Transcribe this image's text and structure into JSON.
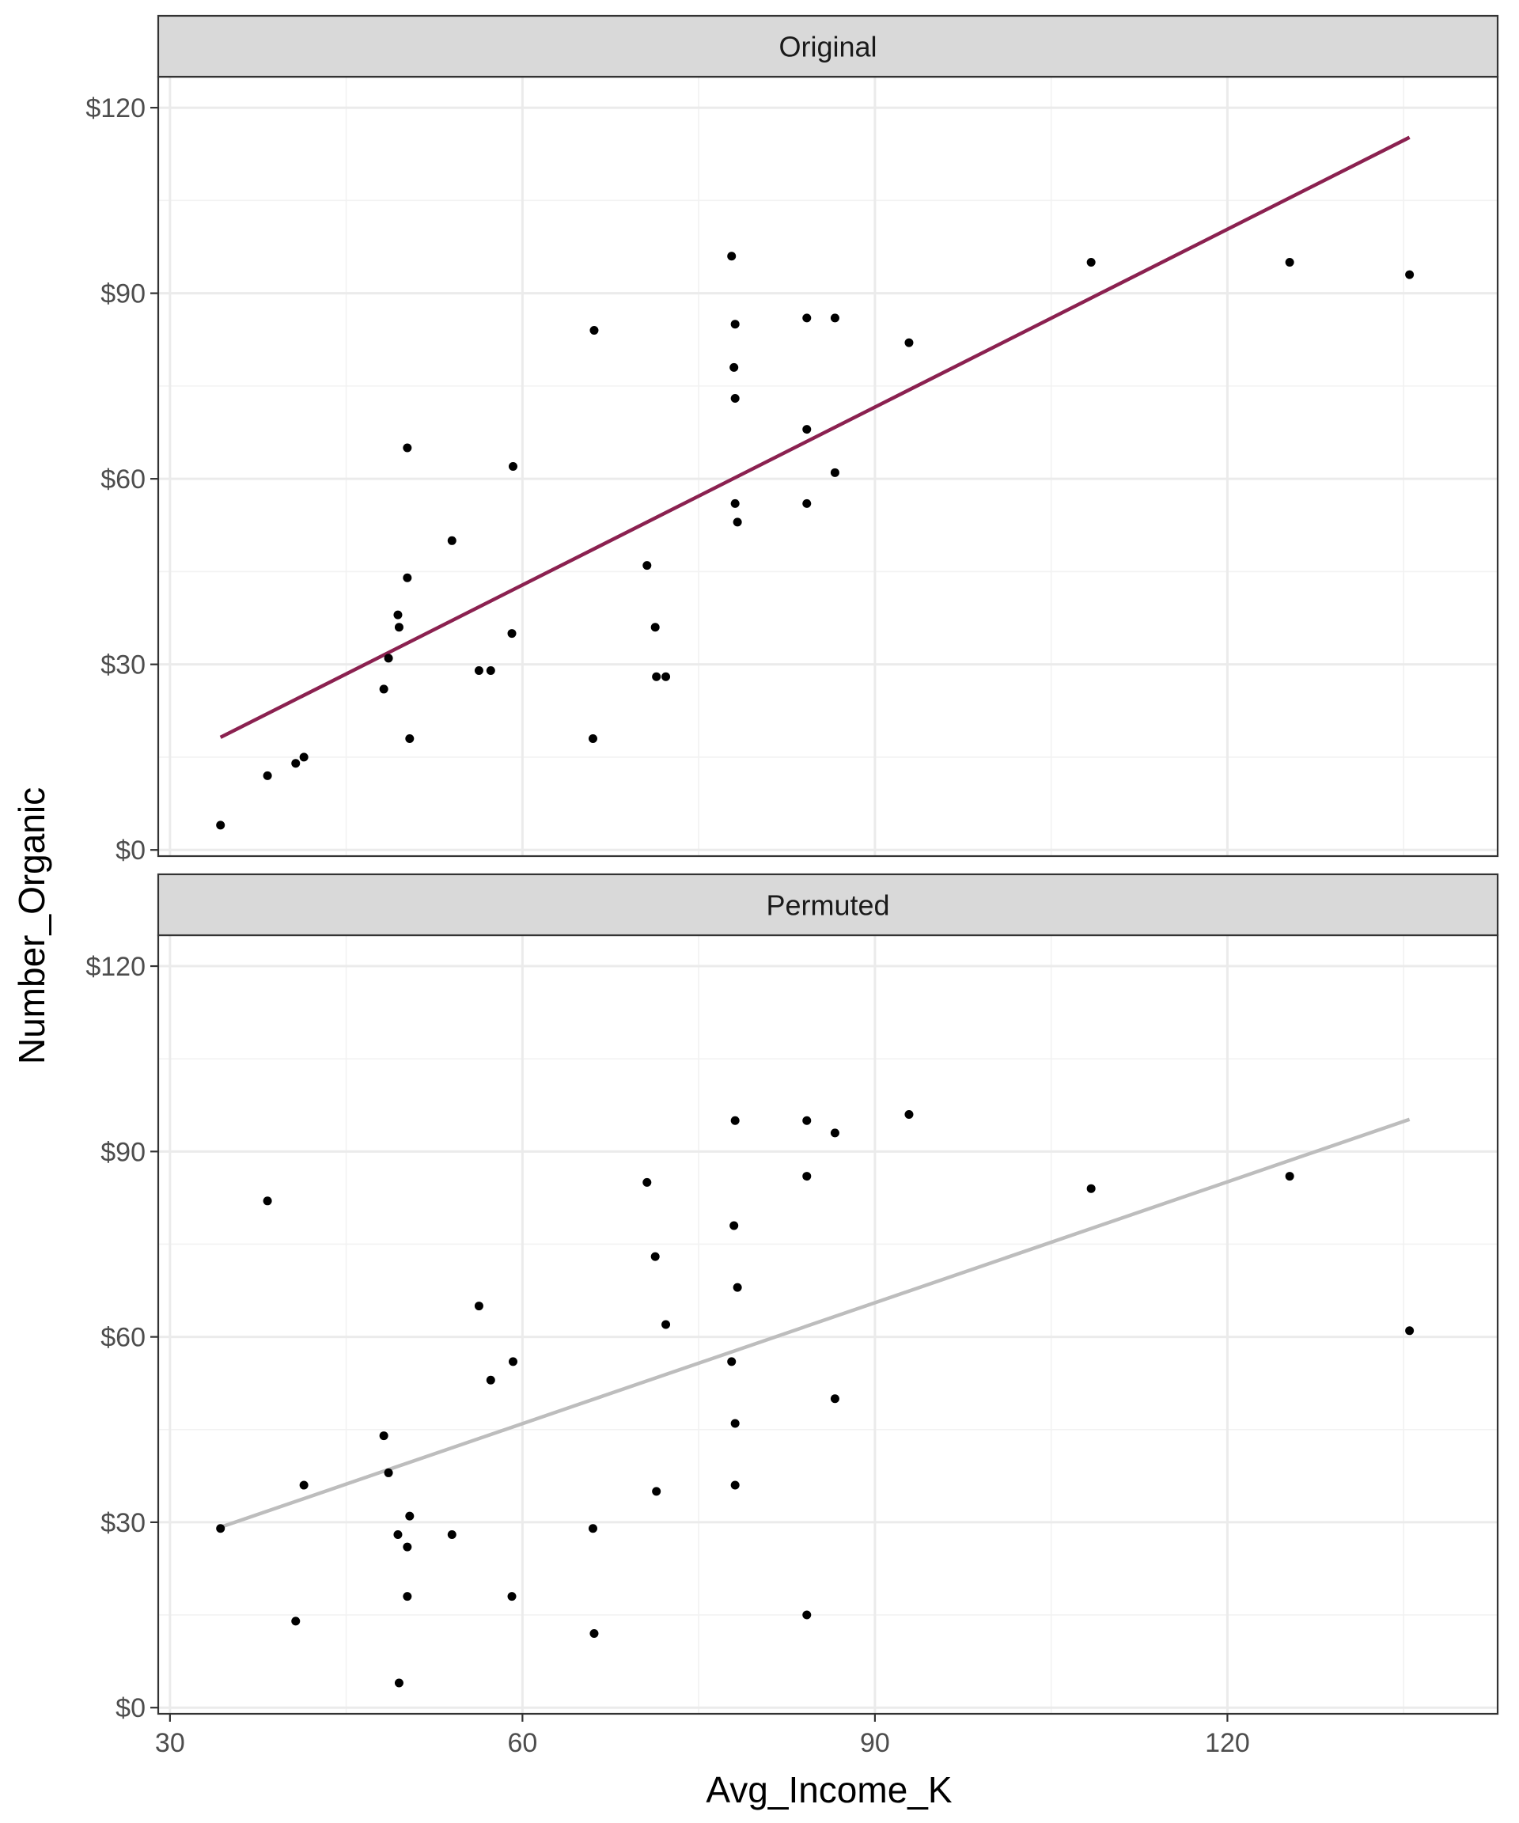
{
  "chart_data": {
    "type": "scatter",
    "xlabel": "Avg_Income_K",
    "ylabel": "Number_Organic",
    "xlim": [
      29,
      143
    ],
    "ylim": [
      -1,
      125
    ],
    "x_ticks": [
      30,
      60,
      90,
      120
    ],
    "x_tick_labels": [
      "30",
      "60",
      "90",
      "120"
    ],
    "y_ticks": [
      0,
      30,
      60,
      90,
      120
    ],
    "y_tick_labels": [
      "$0",
      "$30",
      "$60",
      "$90",
      "$120"
    ],
    "grid": true,
    "panels": [
      {
        "name": "Original",
        "line_color": "#8b2150",
        "trend_line": {
          "x": [
            34.3,
            135.5
          ],
          "y": [
            18.2,
            115.2
          ]
        },
        "points": [
          [
            34.3,
            4
          ],
          [
            38.3,
            12
          ],
          [
            40.7,
            14
          ],
          [
            41.4,
            15
          ],
          [
            48.2,
            26
          ],
          [
            48.6,
            31
          ],
          [
            49.4,
            38
          ],
          [
            49.5,
            36
          ],
          [
            50.2,
            44
          ],
          [
            50.4,
            18
          ],
          [
            50.2,
            65
          ],
          [
            54.0,
            50
          ],
          [
            56.3,
            29
          ],
          [
            57.3,
            29
          ],
          [
            59.1,
            35
          ],
          [
            59.2,
            62
          ],
          [
            66.0,
            18
          ],
          [
            66.1,
            84
          ],
          [
            70.6,
            46
          ],
          [
            71.3,
            36
          ],
          [
            71.4,
            28
          ],
          [
            72.2,
            28
          ],
          [
            77.8,
            96
          ],
          [
            78.1,
            85
          ],
          [
            78.0,
            78
          ],
          [
            78.1,
            73
          ],
          [
            78.1,
            56
          ],
          [
            78.3,
            53
          ],
          [
            84.2,
            86
          ],
          [
            84.2,
            68
          ],
          [
            84.2,
            56
          ],
          [
            86.6,
            86
          ],
          [
            86.6,
            61
          ],
          [
            92.9,
            82
          ],
          [
            108.4,
            95
          ],
          [
            125.3,
            95
          ],
          [
            135.5,
            93
          ]
        ]
      },
      {
        "name": "Permuted",
        "line_color": "#bdbdbd",
        "trend_line": {
          "x": [
            34.3,
            135.5
          ],
          "y": [
            29.2,
            95.2
          ]
        },
        "points": [
          [
            34.3,
            29
          ],
          [
            38.3,
            82
          ],
          [
            40.7,
            14
          ],
          [
            41.4,
            36
          ],
          [
            48.2,
            44
          ],
          [
            48.6,
            38
          ],
          [
            49.4,
            28
          ],
          [
            49.5,
            4
          ],
          [
            50.2,
            18
          ],
          [
            50.2,
            26
          ],
          [
            50.4,
            31
          ],
          [
            54.0,
            28
          ],
          [
            56.3,
            65
          ],
          [
            57.3,
            53
          ],
          [
            59.1,
            18
          ],
          [
            59.2,
            56
          ],
          [
            66.0,
            29
          ],
          [
            66.1,
            12
          ],
          [
            70.6,
            85
          ],
          [
            71.3,
            73
          ],
          [
            71.4,
            35
          ],
          [
            72.2,
            62
          ],
          [
            77.8,
            56
          ],
          [
            78.1,
            95
          ],
          [
            78.0,
            78
          ],
          [
            78.1,
            46
          ],
          [
            78.1,
            36
          ],
          [
            78.3,
            68
          ],
          [
            84.2,
            95
          ],
          [
            84.2,
            86
          ],
          [
            84.2,
            15
          ],
          [
            86.6,
            93
          ],
          [
            86.6,
            50
          ],
          [
            92.9,
            96
          ],
          [
            108.4,
            84
          ],
          [
            125.3,
            86
          ],
          [
            135.5,
            61
          ]
        ]
      }
    ]
  }
}
